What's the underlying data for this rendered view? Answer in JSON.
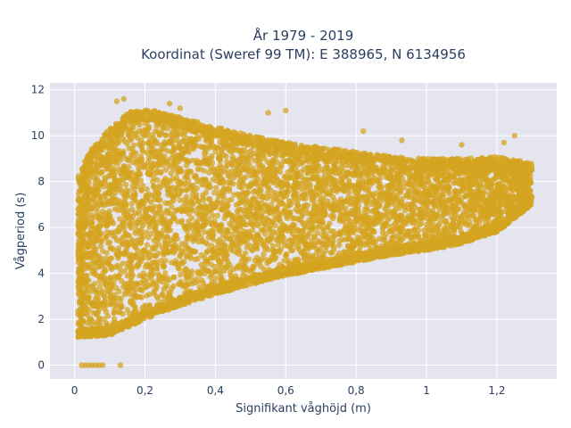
{
  "chart_data": {
    "type": "scatter",
    "title_lines": [
      "År 1979 - 2019",
      "Koordinat (Sweref 99 TM): E 388965, N 6134956"
    ],
    "xlabel": "Signifikant våghöjd (m)",
    "ylabel": "Vågperiod (s)",
    "xlim": [
      -0.07,
      1.37
    ],
    "ylim": [
      -0.6,
      12.3
    ],
    "x_ticks": [
      0,
      0.2,
      0.4,
      0.6,
      0.8,
      1,
      1.2
    ],
    "x_tick_labels": [
      "0",
      "0,2",
      "0,4",
      "0,6",
      "0,8",
      "1",
      "1,2"
    ],
    "y_ticks": [
      0,
      2,
      4,
      6,
      8,
      10,
      12
    ],
    "y_tick_labels": [
      "0",
      "2",
      "4",
      "6",
      "8",
      "10",
      "12"
    ],
    "grid": true,
    "background": "#e5e5f0",
    "marker_color": "#d4a420",
    "series": [
      {
        "description_points": "dense cloud of wave height vs wave period observations",
        "envelope_lower": [
          [
            0.0,
            1.2
          ],
          [
            0.1,
            1.3
          ],
          [
            0.2,
            2.0
          ],
          [
            0.3,
            2.6
          ],
          [
            0.4,
            3.1
          ],
          [
            0.5,
            3.5
          ],
          [
            0.6,
            3.9
          ],
          [
            0.7,
            4.2
          ],
          [
            0.8,
            4.5
          ],
          [
            0.9,
            4.8
          ],
          [
            1.0,
            5.0
          ],
          [
            1.1,
            5.3
          ],
          [
            1.2,
            5.8
          ],
          [
            1.3,
            7.0
          ]
        ],
        "envelope_upper": [
          [
            0.0,
            8.0
          ],
          [
            0.05,
            9.5
          ],
          [
            0.1,
            10.3
          ],
          [
            0.15,
            11.0
          ],
          [
            0.2,
            11.2
          ],
          [
            0.3,
            10.8
          ],
          [
            0.4,
            10.4
          ],
          [
            0.5,
            10.0
          ],
          [
            0.6,
            9.7
          ],
          [
            0.7,
            9.5
          ],
          [
            0.8,
            9.3
          ],
          [
            0.9,
            9.1
          ],
          [
            1.0,
            9.0
          ],
          [
            1.1,
            9.0
          ],
          [
            1.2,
            9.1
          ],
          [
            1.3,
            8.8
          ]
        ],
        "zero_period_points": [
          [
            0.02,
            0
          ],
          [
            0.03,
            0
          ],
          [
            0.04,
            0
          ],
          [
            0.05,
            0
          ],
          [
            0.06,
            0
          ],
          [
            0.07,
            0
          ],
          [
            0.08,
            0
          ],
          [
            0.13,
            0
          ]
        ],
        "outliers": [
          [
            0.14,
            11.6
          ],
          [
            0.12,
            11.5
          ],
          [
            0.3,
            11.2
          ],
          [
            0.27,
            11.4
          ],
          [
            0.6,
            11.1
          ],
          [
            0.55,
            11.0
          ],
          [
            0.82,
            10.2
          ],
          [
            0.93,
            9.8
          ],
          [
            1.1,
            9.6
          ],
          [
            1.25,
            10.0
          ],
          [
            1.22,
            9.7
          ]
        ]
      }
    ]
  }
}
